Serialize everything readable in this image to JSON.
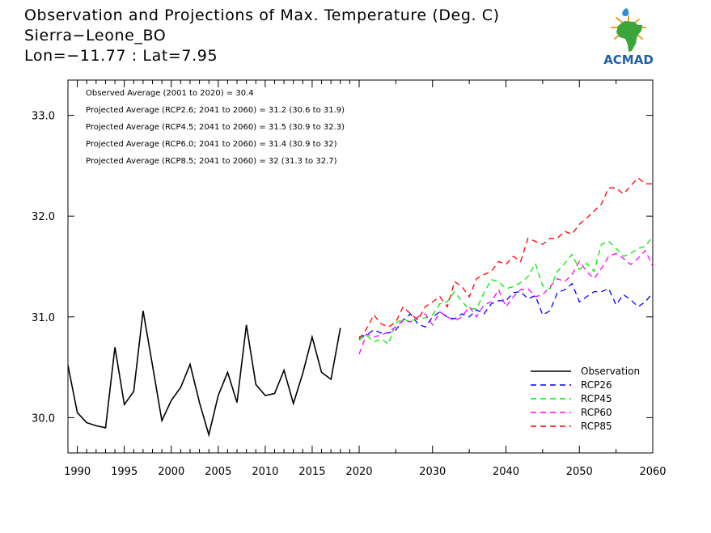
{
  "header": {
    "title": "Observation and Projections of Max. Temperature (Deg. C)",
    "region": "Sierra−Leone_BO",
    "location": "Lon=−11.77 : Lat=7.95"
  },
  "logo": {
    "text": "ACMAD"
  },
  "chart_data": {
    "type": "line",
    "ylim": [
      29.65,
      33.35
    ],
    "yticks": [
      30.0,
      31.0,
      32.0,
      33.0
    ],
    "ytick_labels": [
      "30.0",
      "31.0",
      "32.0",
      "33.0"
    ],
    "xticks_left": [
      1990,
      1995,
      2000,
      2005,
      2010,
      2015,
      2020
    ],
    "xticks_right": [
      2030,
      2040,
      2050,
      2060
    ],
    "annotations": [
      "Observed Average (2001 to 2020) = 30.4",
      "Projected Average (RCP2.6; 2041 to 2060) = 31.2 (30.6 to 31.9)",
      "Projected Average (RCP4.5; 2041 to 2060) = 31.5 (30.9 to 32.3)",
      "Projected Average (RCP6.0; 2041 to 2060) = 31.4 (30.9 to 32)",
      "Projected Average (RCP8.5; 2041 to 2060) = 32 (31.3 to 32.7)"
    ],
    "legend_position": "bottom-right",
    "observation": {
      "name": "Observation",
      "color": "#000000",
      "x": [
        1989,
        1990,
        1991,
        1992,
        1993,
        1994,
        1995,
        1996,
        1997,
        1998,
        1999,
        2000,
        2001,
        2002,
        2003,
        2004,
        2005,
        2006,
        2007,
        2008,
        2009,
        2010,
        2011,
        2012,
        2013,
        2014,
        2015,
        2016,
        2017,
        2018,
        2019
      ],
      "y": [
        30.52,
        30.05,
        29.95,
        29.92,
        29.9,
        30.7,
        30.13,
        30.26,
        31.06,
        30.52,
        29.97,
        30.17,
        30.3,
        30.53,
        30.15,
        29.83,
        30.22,
        30.45,
        30.15,
        30.92,
        30.33,
        30.22,
        30.24,
        30.47,
        30.14,
        30.44,
        30.8,
        30.45,
        30.38,
        30.89,
        null
      ]
    },
    "projections": {
      "x": [
        2020,
        2021,
        2022,
        2023,
        2024,
        2025,
        2026,
        2027,
        2028,
        2029,
        2030,
        2031,
        2032,
        2033,
        2034,
        2035,
        2036,
        2037,
        2038,
        2039,
        2040,
        2041,
        2042,
        2043,
        2044,
        2045,
        2046,
        2047,
        2048,
        2049,
        2050,
        2051,
        2052,
        2053,
        2054,
        2055,
        2056,
        2057,
        2058,
        2059,
        2060
      ],
      "series": [
        {
          "name": "RCP26",
          "color": "#0000ff",
          "y": [
            30.8,
            30.82,
            30.87,
            30.84,
            30.84,
            30.87,
            30.97,
            31.03,
            30.93,
            30.9,
            31.0,
            31.05,
            31.0,
            30.98,
            31.03,
            31.0,
            31.07,
            31.03,
            31.13,
            31.16,
            31.16,
            31.24,
            31.25,
            31.18,
            31.21,
            31.02,
            31.06,
            31.24,
            31.27,
            31.33,
            31.15,
            31.2,
            31.25,
            31.25,
            31.28,
            31.12,
            31.22,
            31.17,
            31.1,
            31.15,
            31.24
          ]
        },
        {
          "name": "RCP45",
          "color": "#00ee00",
          "y": [
            30.77,
            30.82,
            30.75,
            30.78,
            30.73,
            30.94,
            30.98,
            30.95,
            30.98,
            30.99,
            31.02,
            31.13,
            31.15,
            31.25,
            31.15,
            31.08,
            31.08,
            31.24,
            31.37,
            31.35,
            31.28,
            31.3,
            31.34,
            31.4,
            31.53,
            31.31,
            31.28,
            31.45,
            31.53,
            31.62,
            31.47,
            31.53,
            31.45,
            31.72,
            31.75,
            31.68,
            31.6,
            31.63,
            31.68,
            31.7,
            31.8
          ]
        },
        {
          "name": "RCP60",
          "color": "#ff00ff",
          "y": [
            30.63,
            30.83,
            30.8,
            30.82,
            30.85,
            30.9,
            30.97,
            30.95,
            31.0,
            31.03,
            30.92,
            31.05,
            31.0,
            30.96,
            31.0,
            31.1,
            31.0,
            31.12,
            31.15,
            31.27,
            31.1,
            31.2,
            31.27,
            31.28,
            31.2,
            31.22,
            31.3,
            31.38,
            31.35,
            31.42,
            31.55,
            31.45,
            31.38,
            31.48,
            31.6,
            31.63,
            31.58,
            31.52,
            31.58,
            31.66,
            31.5
          ]
        },
        {
          "name": "RCP85",
          "color": "#ff0000",
          "y": [
            30.78,
            30.88,
            31.02,
            30.93,
            30.9,
            30.95,
            31.1,
            31.03,
            30.97,
            31.1,
            31.15,
            31.2,
            31.1,
            31.35,
            31.3,
            31.2,
            31.38,
            31.42,
            31.45,
            31.55,
            31.52,
            31.6,
            31.55,
            31.78,
            31.75,
            31.72,
            31.78,
            31.78,
            31.85,
            31.82,
            31.92,
            31.98,
            32.05,
            32.12,
            32.28,
            32.28,
            32.22,
            32.3,
            32.38,
            32.32,
            32.32
          ]
        }
      ]
    }
  }
}
